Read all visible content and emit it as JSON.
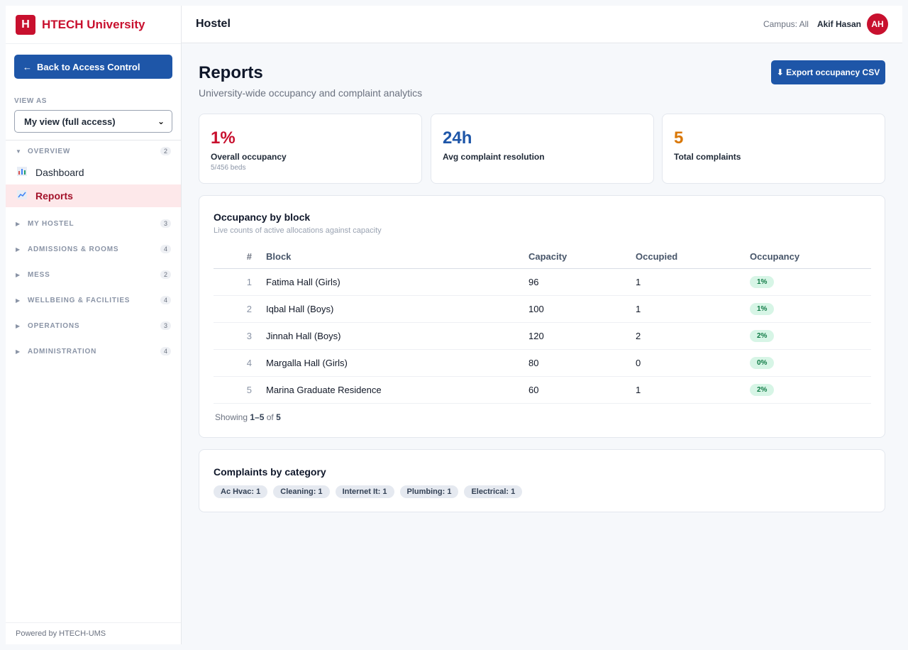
{
  "brand": {
    "logo_letter": "H",
    "name": "HTECH University",
    "color": "#c8102e"
  },
  "sidebar": {
    "back_label": "Back to Access Control",
    "back_arrow": "←",
    "view_as_label": "VIEW AS",
    "view_as_value": "My view (full access)",
    "groups": [
      {
        "label": "OVERVIEW",
        "count": "2",
        "expanded": true
      },
      {
        "label": "MY HOSTEL",
        "count": "3",
        "expanded": false
      },
      {
        "label": "ADMISSIONS & ROOMS",
        "count": "4",
        "expanded": false
      },
      {
        "label": "MESS",
        "count": "2",
        "expanded": false
      },
      {
        "label": "WELLBEING & FACILITIES",
        "count": "4",
        "expanded": false
      },
      {
        "label": "OPERATIONS",
        "count": "3",
        "expanded": false
      },
      {
        "label": "ADMINISTRATION",
        "count": "4",
        "expanded": false
      }
    ],
    "items": [
      {
        "label": "Dashboard",
        "icon": "bar-chart-icon",
        "active": false
      },
      {
        "label": "Reports",
        "icon": "line-chart-icon",
        "active": true
      }
    ],
    "powered_by": "Powered by HTECH-UMS"
  },
  "topbar": {
    "title": "Hostel",
    "campus": "Campus: All",
    "user": "Akif Hasan",
    "avatar_initials": "AH"
  },
  "page": {
    "title": "Reports",
    "subtitle": "University-wide occupancy and complaint analytics",
    "export_label": "⬇ Export occupancy CSV"
  },
  "stats": [
    {
      "value": "1%",
      "label": "Overall occupancy",
      "sub": "5/456 beds",
      "color": "#c8102e"
    },
    {
      "value": "24h",
      "label": "Avg complaint resolution",
      "sub": "",
      "color": "#1e56a8"
    },
    {
      "value": "5",
      "label": "Total complaints",
      "sub": "",
      "color": "#d97706"
    }
  ],
  "occupancy": {
    "title": "Occupancy by block",
    "subtitle": "Live counts of active allocations against capacity",
    "columns": [
      "#",
      "Block",
      "Capacity",
      "Occupied",
      "Occupancy"
    ],
    "rows": [
      {
        "num": "1",
        "block": "Fatima Hall (Girls)",
        "capacity": "96",
        "occupied": "1",
        "occupancy": "1%"
      },
      {
        "num": "2",
        "block": "Iqbal Hall (Boys)",
        "capacity": "100",
        "occupied": "1",
        "occupancy": "1%"
      },
      {
        "num": "3",
        "block": "Jinnah Hall (Boys)",
        "capacity": "120",
        "occupied": "2",
        "occupancy": "2%"
      },
      {
        "num": "4",
        "block": "Margalla Hall (Girls)",
        "capacity": "80",
        "occupied": "0",
        "occupancy": "0%"
      },
      {
        "num": "5",
        "block": "Marina Graduate Residence",
        "capacity": "60",
        "occupied": "1",
        "occupancy": "2%"
      }
    ],
    "showing_prefix": "Showing ",
    "showing_range": "1–5",
    "showing_of": " of ",
    "showing_total": "5"
  },
  "complaints": {
    "title": "Complaints by category",
    "tags": [
      "Ac Hvac: 1",
      "Cleaning: 1",
      "Internet It: 1",
      "Plumbing: 1",
      "Electrical: 1"
    ]
  }
}
